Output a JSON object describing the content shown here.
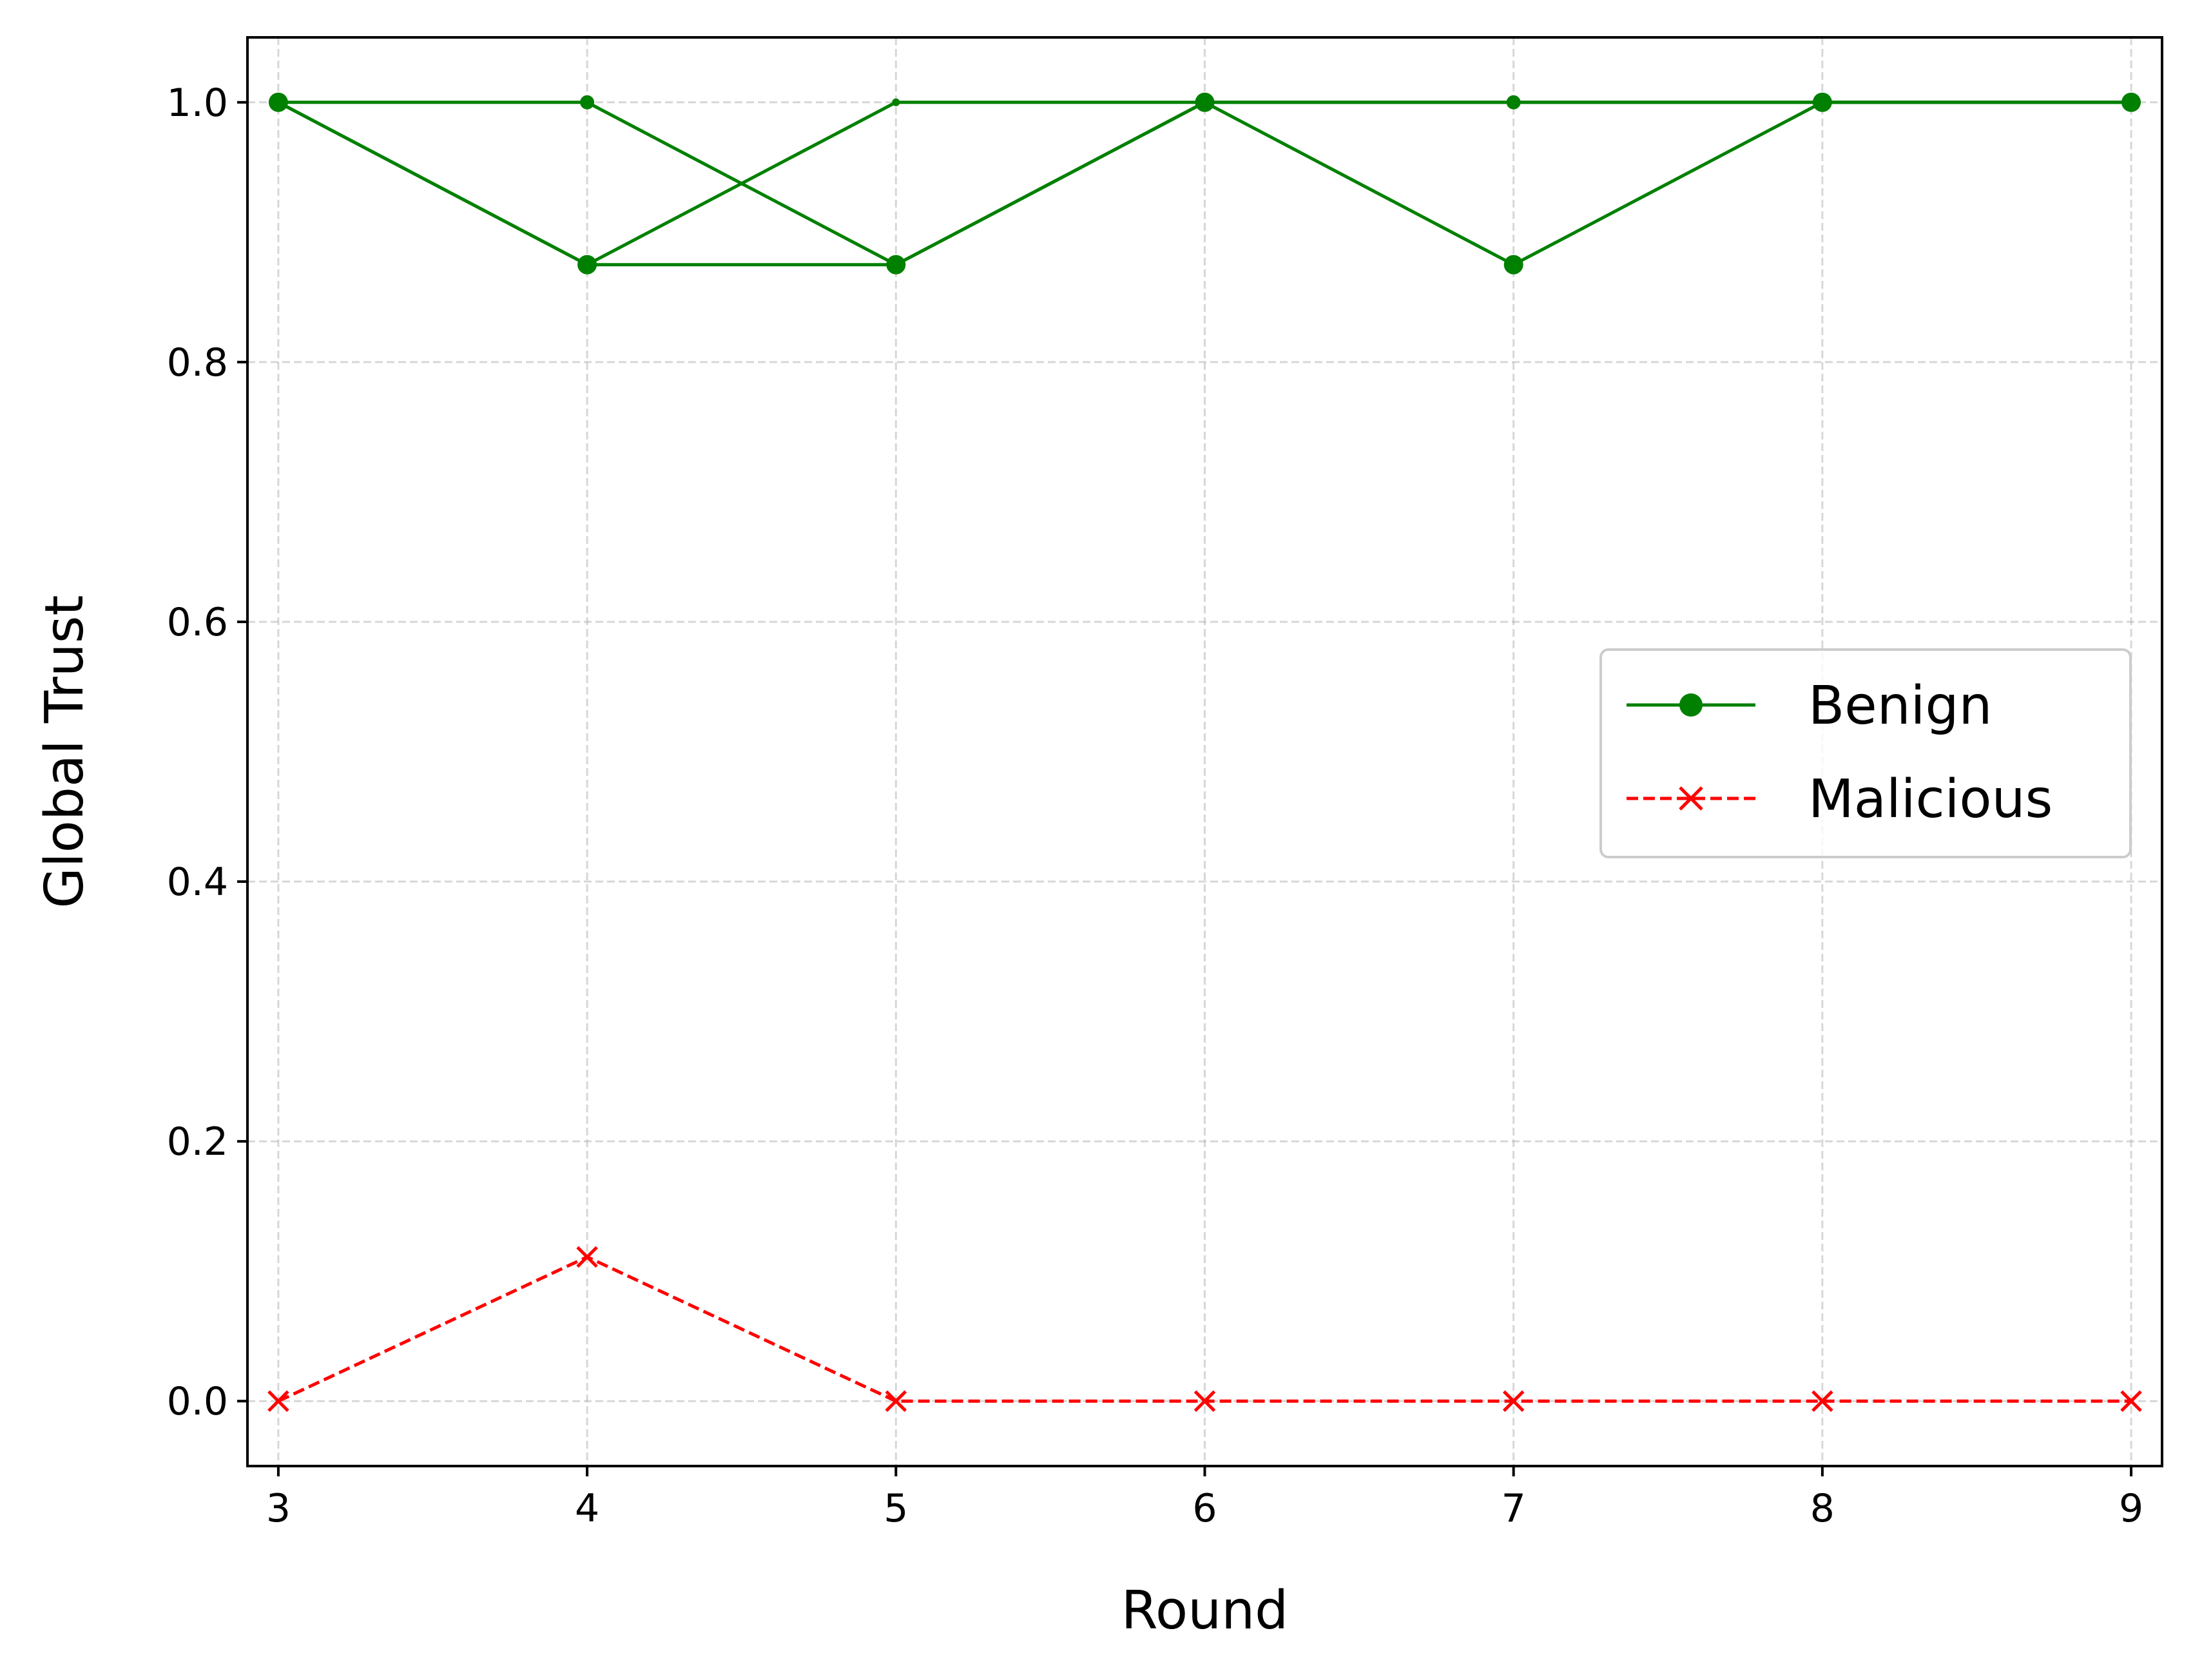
{
  "chart_data": {
    "type": "line",
    "title": "",
    "xlabel": "Round",
    "ylabel": "Global Trust",
    "xlim": [
      2.9,
      9.1
    ],
    "ylim": [
      -0.05,
      1.05
    ],
    "x_ticks": [
      3,
      4,
      5,
      6,
      7,
      8,
      9
    ],
    "y_ticks": [
      0.0,
      0.2,
      0.4,
      0.6,
      0.8,
      1.0
    ],
    "x_tick_labels": [
      "3",
      "4",
      "5",
      "6",
      "7",
      "8",
      "9"
    ],
    "y_tick_labels": [
      "0.0",
      "0.2",
      "0.4",
      "0.6",
      "0.8",
      "1.0"
    ],
    "grid": true,
    "legend_position": "center-right",
    "colors": {
      "benign": "#008000",
      "malicious": "#ff0000",
      "grid": "#b0b0b0"
    },
    "series": [
      {
        "name": "Benign",
        "group": "benign",
        "legend": true,
        "x": [
          3,
          4,
          5,
          6,
          7,
          8,
          9
        ],
        "y": [
          1.0,
          0.875,
          0.875,
          1.0,
          0.875,
          1.0,
          1.0
        ]
      },
      {
        "name": "Benign",
        "group": "benign",
        "legend": false,
        "x": [
          3,
          4,
          5,
          6,
          7,
          8,
          9
        ],
        "y": [
          1.0,
          1.0,
          0.875,
          1.0,
          1.0,
          1.0,
          1.0
        ]
      },
      {
        "name": "Benign",
        "group": "benign",
        "legend": false,
        "x": [
          3,
          4,
          5,
          6,
          7,
          8,
          9
        ],
        "y": [
          1.0,
          0.875,
          1.0,
          1.0,
          1.0,
          1.0,
          1.0
        ]
      },
      {
        "name": "Malicious",
        "group": "malicious",
        "legend": true,
        "x": [
          3,
          4,
          5,
          6,
          7,
          8,
          9
        ],
        "y": [
          0.0,
          0.111,
          0.0,
          0.0,
          0.0,
          0.0,
          0.0
        ]
      }
    ],
    "legend": [
      {
        "label": "Benign",
        "group": "benign",
        "marker": "circle",
        "linestyle": "solid"
      },
      {
        "label": "Malicious",
        "group": "malicious",
        "marker": "x",
        "linestyle": "dashed"
      }
    ]
  }
}
